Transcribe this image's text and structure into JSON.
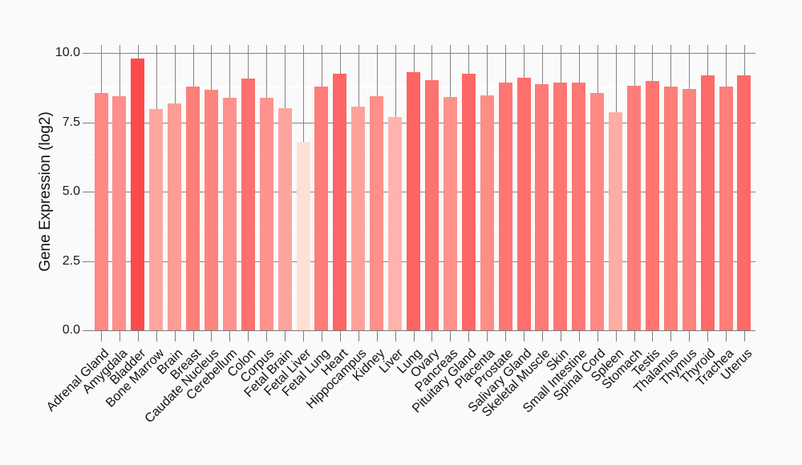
{
  "chart_data": {
    "type": "bar",
    "title": "",
    "xlabel": "",
    "ylabel": "Gene Expression (log2)",
    "yticks": [
      "0.0",
      "2.5",
      "5.0",
      "7.5",
      "10.0"
    ],
    "ytick_values": [
      0,
      2.5,
      5,
      7.5,
      10
    ],
    "minor_tick_values": [
      1.25,
      3.75,
      6.25,
      8.75
    ],
    "ylim": [
      0,
      10.3
    ],
    "grid": "major-gray-horizontal, minor-white-horizontal, gray-vertical-per-category",
    "legend_position": "none",
    "categories": [
      "Adrenal Gland",
      "Amygdala",
      "Bladder",
      "Bone Marrow",
      "Brain",
      "Breast",
      "Caudate Nucleus",
      "Cerebellum",
      "Colon",
      "Corpus",
      "Fetal Brain",
      "Fetal Liver",
      "Fetal Lung",
      "Heart",
      "Hippocampus",
      "Kidney",
      "Liver",
      "Lung",
      "Ovary",
      "Pancreas",
      "Pituitary Gland",
      "Placenta",
      "Prostate",
      "Salivary Gland",
      "Skeletal Muscle",
      "Skin",
      "Small Intestine",
      "Spinal Cord",
      "Spleen",
      "Stomach",
      "Testis",
      "Thalamus",
      "Thymus",
      "Thyroid",
      "Trachea",
      "Uterus"
    ],
    "values": [
      8.55,
      8.44,
      9.81,
      7.98,
      8.17,
      8.78,
      8.66,
      8.39,
      9.07,
      8.37,
      8.01,
      6.8,
      8.8,
      9.26,
      8.07,
      8.44,
      7.7,
      9.31,
      9.02,
      8.4,
      9.25,
      8.47,
      8.94,
      9.1,
      8.87,
      8.94,
      8.92,
      8.55,
      7.86,
      8.81,
      8.98,
      8.78,
      8.7,
      9.18,
      8.78,
      9.18
    ],
    "color_scale": {
      "min_value": 6.8,
      "max_value": 9.81,
      "min_color": "#ffe0d5",
      "max_color": "#fd4b4b"
    }
  },
  "style": {
    "background": "#fafafa",
    "grid_major_color": "#858585",
    "grid_minor_color": "#ffffff",
    "axis_line_color": "#7d7d7d",
    "text_color": "#111111"
  }
}
